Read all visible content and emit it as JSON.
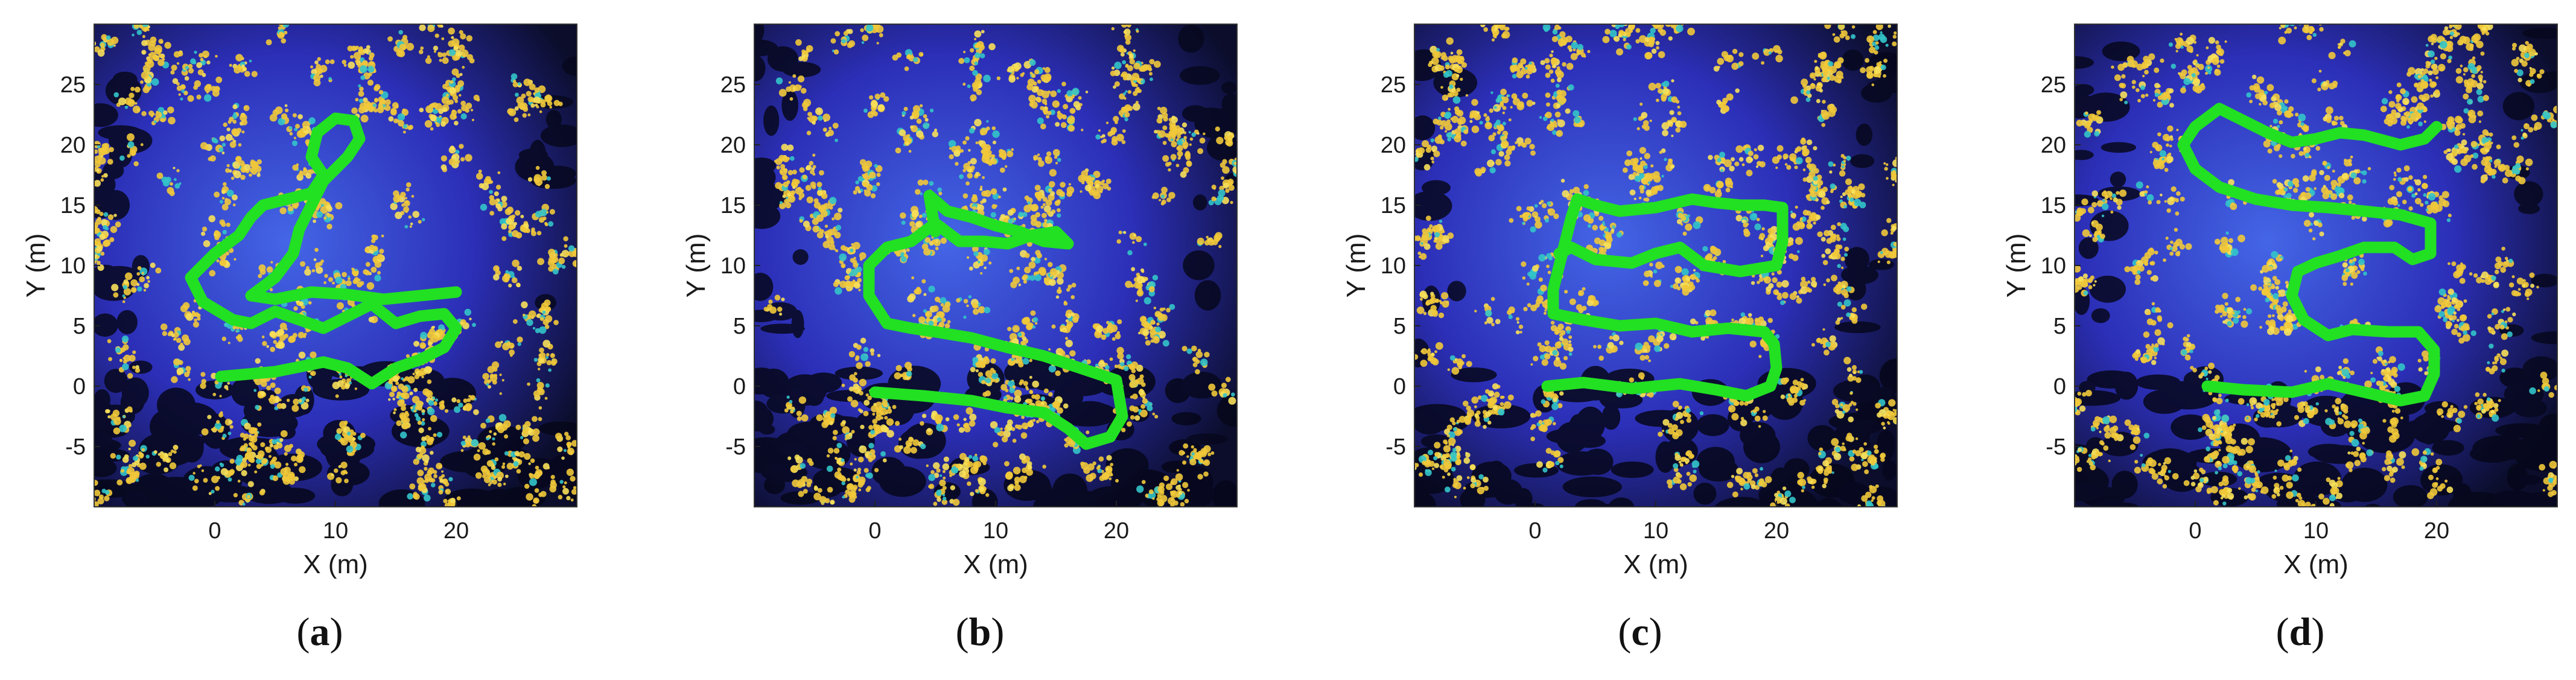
{
  "panels": [
    {
      "id": "a",
      "label": "a",
      "chart_data": {
        "type": "scatter",
        "xlabel": "X (m)",
        "ylabel": "Y (m)",
        "xlim": [
          -10,
          30
        ],
        "ylim": [
          -10,
          30
        ],
        "xticks": [
          0,
          10,
          20
        ],
        "yticks": [
          -5,
          0,
          5,
          10,
          15,
          20,
          25
        ],
        "background": "point cloud (blue/yellow)",
        "trajectory_color": "#22e022",
        "trajectory": [
          [
            0.5,
            0.8
          ],
          [
            5,
            1.2
          ],
          [
            9,
            2
          ],
          [
            11,
            1.5
          ],
          [
            13,
            0.2
          ],
          [
            15,
            1.5
          ],
          [
            17,
            2.2
          ],
          [
            19,
            3.2
          ],
          [
            20,
            4.8
          ],
          [
            19,
            6
          ],
          [
            17,
            5.8
          ],
          [
            15,
            5.2
          ],
          [
            13,
            6.8
          ],
          [
            11,
            5.8
          ],
          [
            9,
            4.8
          ],
          [
            7,
            5.5
          ],
          [
            5,
            6.2
          ],
          [
            3,
            5.2
          ],
          [
            1.5,
            5.5
          ],
          [
            -1,
            7
          ],
          [
            -2,
            9
          ],
          [
            0,
            11
          ],
          [
            2,
            12.5
          ],
          [
            3,
            14
          ],
          [
            4,
            15
          ],
          [
            6,
            15.5
          ],
          [
            8,
            16
          ],
          [
            9,
            17.5
          ],
          [
            8,
            19
          ],
          [
            8.5,
            21
          ],
          [
            10,
            22.2
          ],
          [
            11.5,
            22
          ],
          [
            12,
            20.5
          ],
          [
            11,
            19
          ],
          [
            10,
            18
          ],
          [
            9,
            17
          ],
          [
            8,
            15
          ],
          [
            7,
            13
          ],
          [
            6.5,
            11
          ],
          [
            5,
            9
          ],
          [
            3,
            7.5
          ],
          [
            5,
            7.2
          ],
          [
            8,
            7.8
          ],
          [
            11,
            7.6
          ],
          [
            14,
            7.2
          ],
          [
            17,
            7.5
          ],
          [
            20,
            7.8
          ]
        ]
      }
    },
    {
      "id": "b",
      "label": "b",
      "chart_data": {
        "type": "scatter",
        "xlabel": "X (m)",
        "ylabel": "Y (m)",
        "xlim": [
          -10,
          30
        ],
        "ylim": [
          -10,
          30
        ],
        "xticks": [
          0,
          10,
          20
        ],
        "yticks": [
          -5,
          0,
          5,
          10,
          15,
          20,
          25
        ],
        "background": "point cloud (blue/yellow)",
        "trajectory_color": "#22e022",
        "trajectory": [
          [
            0,
            -0.5
          ],
          [
            4,
            -0.8
          ],
          [
            8,
            -1.2
          ],
          [
            11,
            -1.8
          ],
          [
            14,
            -2.2
          ],
          [
            16,
            -3.5
          ],
          [
            17.5,
            -4.8
          ],
          [
            19.5,
            -4.2
          ],
          [
            20.5,
            -2.5
          ],
          [
            20,
            0.5
          ],
          [
            17,
            1.5
          ],
          [
            14,
            2.5
          ],
          [
            11,
            3.2
          ],
          [
            8,
            4
          ],
          [
            5,
            4.5
          ],
          [
            3,
            4.8
          ],
          [
            1,
            5.2
          ],
          [
            -0.5,
            7.5
          ],
          [
            -0.5,
            10
          ],
          [
            1,
            11.5
          ],
          [
            3,
            12
          ],
          [
            5,
            13.5
          ],
          [
            7,
            12
          ],
          [
            9,
            12
          ],
          [
            11,
            11.8
          ],
          [
            13,
            12.5
          ],
          [
            15,
            12.8
          ],
          [
            16,
            11.8
          ],
          [
            14,
            12
          ],
          [
            12,
            12.8
          ],
          [
            10,
            13.3
          ],
          [
            8,
            14
          ],
          [
            6,
            14.5
          ],
          [
            4.5,
            15.8
          ],
          [
            5,
            12.8
          ]
        ]
      }
    },
    {
      "id": "c",
      "label": "c",
      "chart_data": {
        "type": "scatter",
        "xlabel": "X (m)",
        "ylabel": "Y (m)",
        "xlim": [
          -10,
          30
        ],
        "ylim": [
          -10,
          30
        ],
        "xticks": [
          0,
          10,
          20
        ],
        "yticks": [
          -5,
          0,
          5,
          10,
          15,
          20,
          25
        ],
        "background": "point cloud (blue/yellow)",
        "trajectory_color": "#22e022",
        "trajectory": [
          [
            1,
            0
          ],
          [
            4,
            0.3
          ],
          [
            8,
            -0.2
          ],
          [
            12,
            0.2
          ],
          [
            15,
            -0.3
          ],
          [
            17.5,
            -0.8
          ],
          [
            19.5,
            0
          ],
          [
            20,
            1.5
          ],
          [
            19.8,
            3.5
          ],
          [
            19,
            4.5
          ],
          [
            16,
            4.8
          ],
          [
            13,
            4.5
          ],
          [
            10,
            5.2
          ],
          [
            7,
            5
          ],
          [
            4,
            5.5
          ],
          [
            1.5,
            6
          ],
          [
            1.5,
            8
          ],
          [
            2,
            10
          ],
          [
            2.5,
            12
          ],
          [
            3,
            14
          ],
          [
            3.5,
            15.5
          ],
          [
            5,
            15
          ],
          [
            7,
            14.5
          ],
          [
            10,
            14.8
          ],
          [
            13,
            15.5
          ],
          [
            15,
            15.2
          ],
          [
            17,
            15
          ],
          [
            19,
            15
          ],
          [
            20.5,
            14.8
          ],
          [
            20.5,
            12
          ],
          [
            20,
            10
          ],
          [
            17,
            9.5
          ],
          [
            14,
            10
          ],
          [
            12,
            11.5
          ],
          [
            10,
            11
          ],
          [
            8,
            10.2
          ],
          [
            5,
            10.5
          ],
          [
            3,
            11.5
          ],
          [
            2,
            11
          ]
        ]
      }
    },
    {
      "id": "d",
      "label": "d",
      "chart_data": {
        "type": "scatter",
        "xlabel": "X (m)",
        "ylabel": "Y (m)",
        "xlim": [
          -10,
          30
        ],
        "ylim": [
          -10,
          30
        ],
        "xticks": [
          0,
          10,
          20
        ],
        "yticks": [
          -5,
          0,
          5,
          10,
          15,
          20,
          25
        ],
        "background": "point cloud (blue/yellow)",
        "trajectory_color": "#22e022",
        "trajectory": [
          [
            1,
            0
          ],
          [
            4,
            -0.3
          ],
          [
            8,
            -0.5
          ],
          [
            11,
            0.2
          ],
          [
            14,
            -0.5
          ],
          [
            17,
            -1.2
          ],
          [
            19,
            -0.8
          ],
          [
            19.8,
            1
          ],
          [
            19.8,
            3
          ],
          [
            18.5,
            4.5
          ],
          [
            16,
            4.5
          ],
          [
            13,
            4.7
          ],
          [
            11,
            4.2
          ],
          [
            9,
            5.5
          ],
          [
            8,
            7.5
          ],
          [
            8.5,
            9.5
          ],
          [
            10,
            10.2
          ],
          [
            12,
            10.8
          ],
          [
            14,
            11.5
          ],
          [
            16.5,
            11.5
          ],
          [
            18,
            10.5
          ],
          [
            19.5,
            11
          ],
          [
            19.5,
            13.5
          ],
          [
            17,
            14.2
          ],
          [
            14,
            14.5
          ],
          [
            11,
            14.8
          ],
          [
            8,
            15
          ],
          [
            5,
            15.5
          ],
          [
            2,
            16.5
          ],
          [
            0,
            18
          ],
          [
            -1,
            20
          ],
          [
            0,
            21.5
          ],
          [
            2,
            23
          ],
          [
            4,
            22
          ],
          [
            6,
            21
          ],
          [
            8,
            20.2
          ],
          [
            10,
            20.5
          ],
          [
            12,
            21
          ],
          [
            14,
            20.8
          ],
          [
            17,
            20
          ],
          [
            19,
            20.5
          ],
          [
            20,
            21.5
          ]
        ]
      }
    }
  ]
}
